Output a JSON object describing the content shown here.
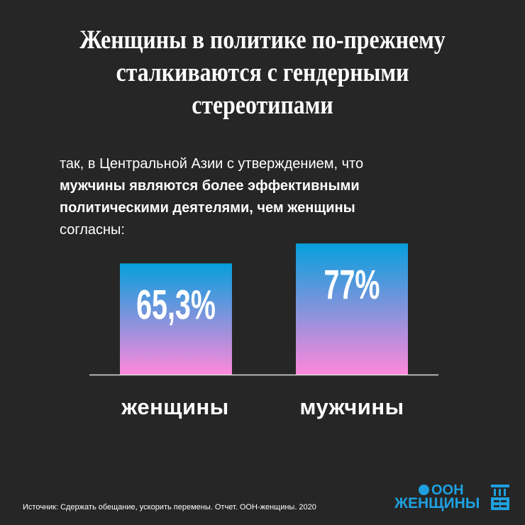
{
  "title": "Женщины в политике по-прежнему сталкиваются с гендерными стереотипами",
  "lead": {
    "part1": "так, в Центральной Азии с утверждением, что",
    "bold": "мужчины являются более эффективными политическими деятелями, чем женщины",
    "part2": "согласны:"
  },
  "chart_data": {
    "type": "bar",
    "categories": [
      "женщины",
      "мужчины"
    ],
    "values": [
      65.3,
      77
    ],
    "data_labels": [
      "65,3%",
      "77%"
    ],
    "ylim": [
      0,
      100
    ],
    "grid": false,
    "colors": {
      "gradient_top": "#069fdc",
      "gradient_bottom": "#ff88dc",
      "baseline": "#dddddd"
    }
  },
  "footer": {
    "source": "Источник: Сдержать обещание, ускорить перемены. Отчет. ООН-женщины. 2020",
    "logo_line1": "ООН",
    "logo_line2": "ЖЕНЩИНЫ",
    "logo_color": "#1ea0e0"
  }
}
